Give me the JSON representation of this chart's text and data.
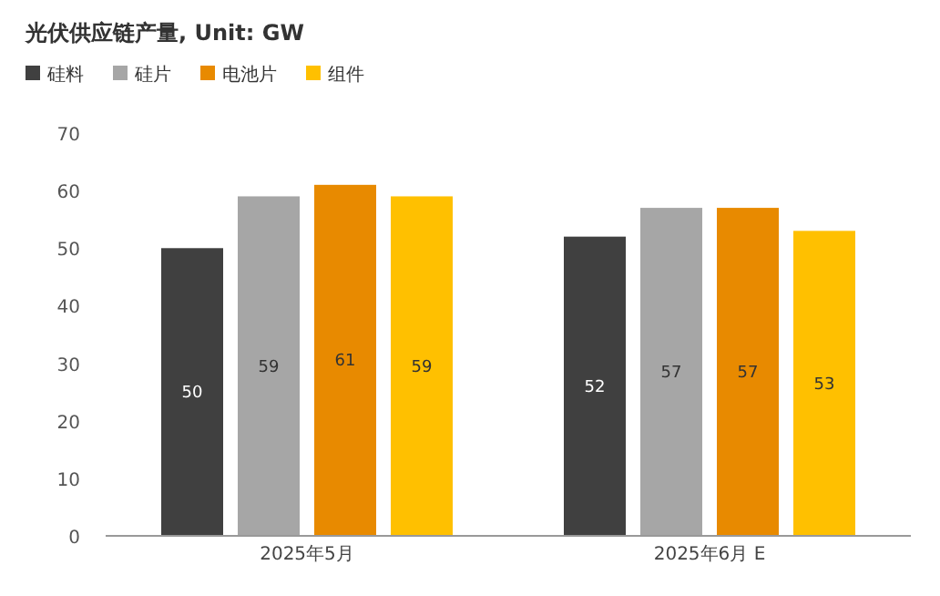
{
  "chart_data": {
    "type": "bar",
    "title": "光伏供应链产量, Unit: GW",
    "categories": [
      "2025年5月",
      "2025年6月 E"
    ],
    "series": [
      {
        "name": "硅料",
        "color": "#404040",
        "values": [
          50,
          52
        ]
      },
      {
        "name": "硅片",
        "color": "#a6a6a6",
        "values": [
          59,
          57
        ]
      },
      {
        "name": "电池片",
        "color": "#e88a00",
        "values": [
          61,
          57
        ]
      },
      {
        "name": "组件",
        "color": "#ffc000",
        "values": [
          59,
          53
        ]
      }
    ],
    "ylim": [
      0,
      70
    ],
    "yticks": [
      0,
      10,
      20,
      30,
      40,
      50,
      60,
      70
    ],
    "legend": "top left",
    "data_labels": true
  }
}
